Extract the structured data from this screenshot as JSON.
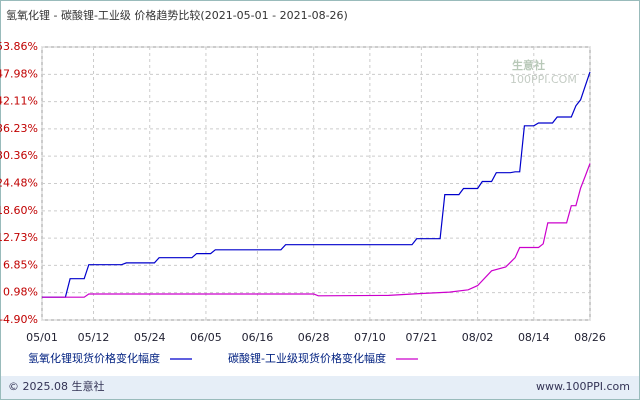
{
  "chart_data": {
    "type": "line",
    "title": "氢氧化锂 - 碳酸锂-工业级 价格趋势比较(2021-05-01 - 2021-08-26)",
    "xlim": [
      "05/01",
      "08/26"
    ],
    "xticks": [
      "05/01",
      "05/12",
      "05/24",
      "06/05",
      "06/16",
      "06/28",
      "07/10",
      "07/21",
      "08/02",
      "08/14",
      "08/26"
    ],
    "ylim": [
      -4.9,
      53.86
    ],
    "yticks": [
      {
        "value": -4.9,
        "label": "-4.90%"
      },
      {
        "value": 0.98,
        "label": "0.98%"
      },
      {
        "value": 6.85,
        "label": "6.85%"
      },
      {
        "value": 12.73,
        "label": "12.73%"
      },
      {
        "value": 18.6,
        "label": "18.60%"
      },
      {
        "value": 24.48,
        "label": "24.48%"
      },
      {
        "value": 30.36,
        "label": "30.36%"
      },
      {
        "value": 36.23,
        "label": "36.23%"
      },
      {
        "value": 42.11,
        "label": "42.11%"
      },
      {
        "value": 47.98,
        "label": "47.98%"
      },
      {
        "value": 53.86,
        "label": "53.86%"
      }
    ],
    "grid": true,
    "series": [
      {
        "name": "氢氧化锂现货价格变化幅度",
        "color": "#0000cc",
        "x": [
          "05/01",
          "05/06",
          "05/07",
          "05/10",
          "05/11",
          "05/18",
          "05/19",
          "05/25",
          "05/26",
          "06/02",
          "06/03",
          "06/06",
          "06/07",
          "06/21",
          "06/22",
          "07/19",
          "07/20",
          "07/25",
          "07/26",
          "07/29",
          "07/30",
          "08/02",
          "08/03",
          "08/05",
          "08/06",
          "08/09",
          "08/10",
          "08/11",
          "08/12",
          "08/14",
          "08/15",
          "08/18",
          "08/19",
          "08/22",
          "08/23",
          "08/24",
          "08/25",
          "08/26"
        ],
        "values": [
          0,
          0,
          4.0,
          4.0,
          7.0,
          7.0,
          7.4,
          7.4,
          8.5,
          8.5,
          9.4,
          9.4,
          10.2,
          10.2,
          11.3,
          11.3,
          12.6,
          12.6,
          22.1,
          22.1,
          23.4,
          23.4,
          24.9,
          24.9,
          26.8,
          26.8,
          27.0,
          27.0,
          36.9,
          36.9,
          37.5,
          37.5,
          38.8,
          38.8,
          41.2,
          42.5,
          45.5,
          48.5
        ]
      },
      {
        "name": "碳酸锂-工业级现货价格变化幅度",
        "color": "#cc00cc",
        "x": [
          "05/01",
          "05/10",
          "05/11",
          "06/28",
          "06/29",
          "07/14",
          "07/21",
          "07/27",
          "07/31",
          "08/02",
          "08/05",
          "08/08",
          "08/10",
          "08/11",
          "08/15",
          "08/16",
          "08/17",
          "08/21",
          "08/22",
          "08/23",
          "08/24",
          "08/25",
          "08/26"
        ],
        "values": [
          0,
          0,
          0.7,
          0.7,
          0.3,
          0.4,
          0.8,
          1.1,
          1.6,
          2.5,
          5.7,
          6.5,
          8.5,
          10.7,
          10.7,
          11.5,
          16.0,
          16.0,
          19.7,
          19.7,
          23.5,
          26.1,
          28.8
        ]
      }
    ],
    "watermark": [
      "生意社",
      "100PPI.COM"
    ],
    "footer": {
      "left": "© 2025.08 生意社",
      "right": "www.100PPI.com"
    }
  }
}
